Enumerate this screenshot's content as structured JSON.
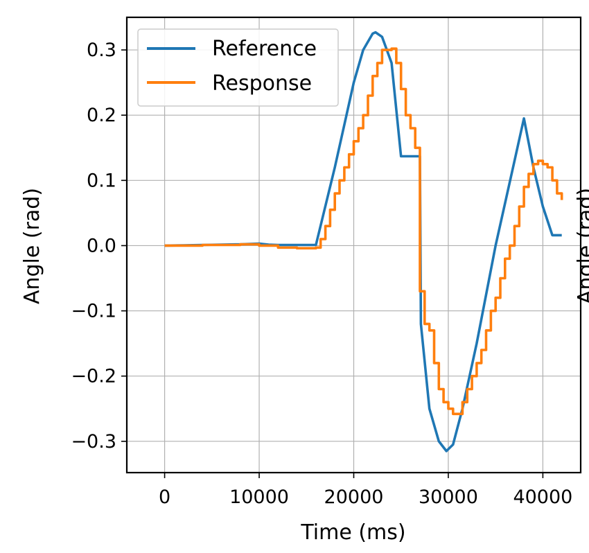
{
  "chart_data": {
    "type": "line",
    "title": "",
    "xlabel": "Time (ms)",
    "ylabel": "Angle (rad)",
    "clipped_right_label": "Angle (rad)",
    "xlim": [
      -4000,
      44000
    ],
    "ylim": [
      -0.348,
      0.35
    ],
    "xticks": [
      0,
      10000,
      20000,
      30000,
      40000
    ],
    "xtick_labels": [
      "0",
      "10000",
      "20000",
      "30000",
      "40000"
    ],
    "yticks": [
      -0.3,
      -0.2,
      -0.1,
      0.0,
      0.1,
      0.2,
      0.3
    ],
    "ytick_labels": [
      "−0.3",
      "−0.2",
      "−0.1",
      "0.0",
      "0.1",
      "0.2",
      "0.3"
    ],
    "grid": true,
    "legend_position": "top-left",
    "series": [
      {
        "name": "Reference",
        "color": "#1f77b4",
        "step": false,
        "x": [
          0,
          2000,
          4000,
          6000,
          8000,
          9000,
          10000,
          11000,
          12000,
          14000,
          16000,
          18000,
          20000,
          21000,
          22000,
          22300,
          23000,
          24000,
          25000,
          26000,
          27000,
          27100,
          28000,
          29000,
          29800,
          30500,
          31500,
          33000,
          35000,
          37000,
          38000,
          39000,
          40000,
          41000,
          42000
        ],
        "y": [
          0.0,
          0.0005,
          0.001,
          0.0015,
          0.002,
          0.0025,
          0.003,
          0.0015,
          0.001,
          0.001,
          0.001,
          0.12,
          0.25,
          0.3,
          0.325,
          0.327,
          0.32,
          0.28,
          0.137,
          0.137,
          0.137,
          -0.12,
          -0.25,
          -0.3,
          -0.315,
          -0.305,
          -0.25,
          -0.15,
          0.0,
          0.13,
          0.195,
          0.12,
          0.06,
          0.016,
          0.016
        ]
      },
      {
        "name": "Response",
        "color": "#ff7f0e",
        "step": true,
        "x": [
          0,
          4000,
          8000,
          10000,
          12000,
          14000,
          16000,
          16500,
          17000,
          17500,
          18000,
          18500,
          19000,
          19500,
          20000,
          20500,
          21000,
          21500,
          22000,
          22500,
          23000,
          24000,
          24500,
          25000,
          25500,
          26000,
          26500,
          27000,
          27500,
          28000,
          28500,
          29000,
          29500,
          30000,
          30500,
          31000,
          31500,
          32000,
          32500,
          33000,
          33500,
          34000,
          34500,
          35000,
          35500,
          36000,
          36500,
          37000,
          37500,
          38000,
          38500,
          39000,
          39500,
          40000,
          40500,
          41000,
          41500,
          42000
        ],
        "y": [
          0.0,
          0.001,
          0.002,
          0.0,
          -0.003,
          -0.004,
          -0.003,
          0.01,
          0.03,
          0.055,
          0.08,
          0.1,
          0.12,
          0.14,
          0.16,
          0.18,
          0.2,
          0.23,
          0.26,
          0.28,
          0.3,
          0.302,
          0.28,
          0.24,
          0.2,
          0.18,
          0.15,
          -0.07,
          -0.12,
          -0.13,
          -0.18,
          -0.22,
          -0.24,
          -0.25,
          -0.258,
          -0.258,
          -0.24,
          -0.22,
          -0.2,
          -0.18,
          -0.16,
          -0.13,
          -0.1,
          -0.08,
          -0.05,
          -0.02,
          0.0,
          0.03,
          0.06,
          0.09,
          0.11,
          0.125,
          0.13,
          0.125,
          0.12,
          0.1,
          0.08,
          0.07
        ]
      }
    ]
  }
}
